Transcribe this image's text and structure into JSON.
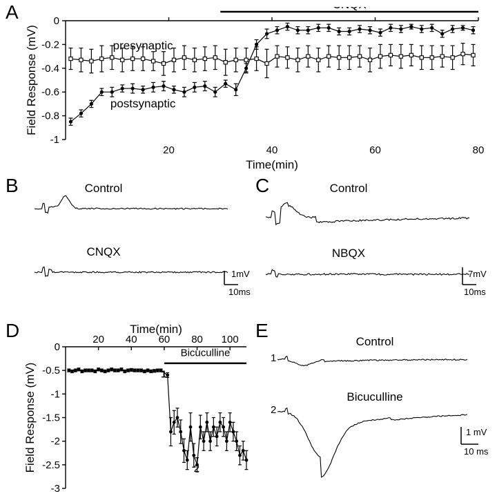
{
  "labels": {
    "panelA": "A",
    "panelB": "B",
    "panelC": "C",
    "panelD": "D",
    "panelE": "E",
    "presynaptic": "presynaptic",
    "postsynaptic": "postsynaptic",
    "cnqx": "CNQX",
    "nbqx": "NBQX",
    "control": "Control",
    "bicuculline": "Bicuculline",
    "mark1": "1",
    "mark2": "2"
  },
  "axes": {
    "A": {
      "x_title": "Time(min)",
      "y_title": "Field Response (mV)",
      "xlim": [
        0,
        80
      ],
      "xticks": [
        20,
        40,
        60,
        80
      ],
      "ylim": [
        -1,
        0
      ],
      "yticks": [
        -1,
        -0.8,
        -0.6,
        -0.4,
        -0.2,
        0
      ]
    },
    "D": {
      "x_title": "Time(min)",
      "y_title": "Field Response (mV)",
      "xlim": [
        0,
        110
      ],
      "xticks": [
        20,
        40,
        60,
        80,
        100
      ],
      "ylim": [
        -3,
        0
      ],
      "yticks": [
        -3,
        -2.5,
        -2,
        -1.5,
        -1,
        -0.5,
        0
      ]
    }
  },
  "scalebars": {
    "B": {
      "y": "1mV",
      "x": "10ms"
    },
    "C": {
      "y": "7mV",
      "x": "10ms"
    },
    "E": {
      "y": "1 mV",
      "x": "10 ms"
    }
  },
  "seriesA": {
    "pre_x": [
      1,
      3,
      5,
      7,
      9,
      11,
      13,
      15,
      17,
      19,
      21,
      23,
      25,
      27,
      29,
      31,
      33,
      35,
      37,
      39,
      41,
      43,
      45,
      47,
      49,
      51,
      53,
      55,
      57,
      59,
      61,
      63,
      65,
      67,
      69,
      71,
      73,
      75,
      77,
      79
    ],
    "pre_y": [
      -0.32,
      -0.33,
      -0.34,
      -0.32,
      -0.31,
      -0.33,
      -0.32,
      -0.32,
      -0.34,
      -0.36,
      -0.33,
      -0.31,
      -0.33,
      -0.32,
      -0.31,
      -0.35,
      -0.33,
      -0.33,
      -0.32,
      -0.36,
      -0.3,
      -0.31,
      -0.33,
      -0.3,
      -0.33,
      -0.3,
      -0.31,
      -0.31,
      -0.3,
      -0.33,
      -0.3,
      -0.29,
      -0.3,
      -0.29,
      -0.31,
      -0.31,
      -0.3,
      -0.31,
      -0.28,
      -0.29
    ],
    "pre_err": [
      0.09,
      0.1,
      0.1,
      0.11,
      0.1,
      0.1,
      0.1,
      0.1,
      0.08,
      0.1,
      0.1,
      0.1,
      0.1,
      0.1,
      0.1,
      0.11,
      0.1,
      0.1,
      0.1,
      0.12,
      0.09,
      0.09,
      0.1,
      0.09,
      0.1,
      0.09,
      0.1,
      0.1,
      0.09,
      0.1,
      0.1,
      0.09,
      0.1,
      0.09,
      0.1,
      0.1,
      0.09,
      0.1,
      0.09,
      0.09
    ],
    "post_x": [
      1,
      3,
      5,
      7,
      9,
      11,
      13,
      15,
      17,
      19,
      21,
      23,
      25,
      27,
      29,
      31,
      33,
      35,
      37,
      39,
      41,
      43,
      45,
      47,
      49,
      51,
      53,
      55,
      57,
      59,
      61,
      63,
      65,
      67,
      69,
      71,
      73,
      75,
      77,
      79
    ],
    "post_y": [
      -0.85,
      -0.78,
      -0.7,
      -0.6,
      -0.6,
      -0.57,
      -0.57,
      -0.58,
      -0.56,
      -0.55,
      -0.58,
      -0.6,
      -0.56,
      -0.55,
      -0.6,
      -0.53,
      -0.58,
      -0.4,
      -0.2,
      -0.11,
      -0.08,
      -0.05,
      -0.08,
      -0.08,
      -0.06,
      -0.06,
      -0.09,
      -0.09,
      -0.07,
      -0.08,
      -0.1,
      -0.06,
      -0.07,
      -0.05,
      -0.07,
      -0.06,
      -0.11,
      -0.07,
      -0.06,
      -0.08
    ],
    "post_err": [
      0.03,
      0.03,
      0.03,
      0.03,
      0.04,
      0.03,
      0.04,
      0.03,
      0.04,
      0.04,
      0.03,
      0.04,
      0.04,
      0.04,
      0.04,
      0.03,
      0.05,
      0.04,
      0.04,
      0.04,
      0.03,
      0.03,
      0.03,
      0.03,
      0.03,
      0.03,
      0.03,
      0.03,
      0.03,
      0.03,
      0.03,
      0.03,
      0.03,
      0.02,
      0.03,
      0.03,
      0.03,
      0.03,
      0.02,
      0.03
    ]
  },
  "seriesD": {
    "x": [
      2,
      4,
      6,
      8,
      10,
      12,
      14,
      16,
      18,
      20,
      22,
      24,
      26,
      28,
      30,
      32,
      34,
      36,
      38,
      40,
      42,
      44,
      46,
      48,
      50,
      52,
      54,
      56,
      58,
      62,
      64,
      66,
      68,
      70,
      72,
      74,
      76,
      78,
      80,
      82,
      84,
      86,
      88,
      90,
      92,
      94,
      96,
      98,
      100,
      102,
      104,
      106,
      108,
      110
    ],
    "y": [
      -0.5,
      -0.52,
      -0.5,
      -0.48,
      -0.52,
      -0.5,
      -0.5,
      -0.5,
      -0.52,
      -0.48,
      -0.5,
      -0.52,
      -0.5,
      -0.48,
      -0.5,
      -0.5,
      -0.48,
      -0.52,
      -0.5,
      -0.49,
      -0.5,
      -0.5,
      -0.5,
      -0.52,
      -0.5,
      -0.52,
      -0.51,
      -0.5,
      -0.5,
      -0.6,
      -1.8,
      -1.6,
      -1.5,
      -1.8,
      -2.2,
      -2.4,
      -1.7,
      -2.3,
      -2.5,
      -1.7,
      -2.0,
      -1.6,
      -2.0,
      -1.7,
      -1.9,
      -1.6,
      -1.7,
      -2.0,
      -1.6,
      -1.8,
      -2.0,
      -2.3,
      -2.2,
      -2.4
    ],
    "err": [
      0.03,
      0.03,
      0.03,
      0.03,
      0.03,
      0.03,
      0.03,
      0.03,
      0.03,
      0.03,
      0.03,
      0.03,
      0.03,
      0.03,
      0.03,
      0.03,
      0.03,
      0.03,
      0.03,
      0.03,
      0.03,
      0.03,
      0.03,
      0.03,
      0.03,
      0.03,
      0.03,
      0.03,
      0.03,
      0.05,
      0.3,
      0.25,
      0.2,
      0.25,
      0.25,
      0.2,
      0.3,
      0.25,
      0.15,
      0.25,
      0.2,
      0.2,
      0.2,
      0.2,
      0.2,
      0.2,
      0.2,
      0.2,
      0.2,
      0.2,
      0.2,
      0.2,
      0.2,
      0.2
    ]
  },
  "style": {
    "background": "#ffffff",
    "line_color": "#000000",
    "marker_open_stroke": "#000000",
    "marker_filled_fill": "#000000",
    "marker_radius": 2.6,
    "line_width": 1.2,
    "font_family": "Arial",
    "panel_label_fontsize": 28,
    "axis_title_fontsize": 17,
    "tick_label_fontsize": 15,
    "scale_fontsize": 13,
    "text_label_fontsize": 17
  }
}
